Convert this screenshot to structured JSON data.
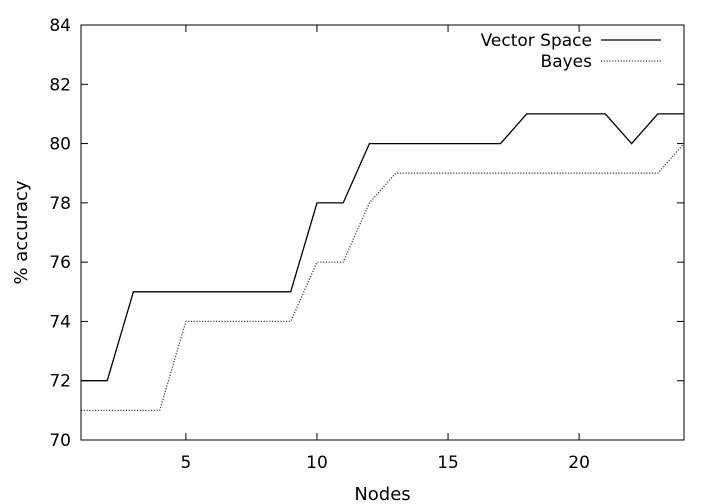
{
  "chart_data": {
    "type": "line",
    "title": "",
    "xlabel": "Nodes",
    "ylabel": "% accuracy",
    "xlim": [
      1,
      24
    ],
    "ylim": [
      70,
      84
    ],
    "xticks": [
      5,
      10,
      15,
      20
    ],
    "yticks": [
      70,
      72,
      74,
      76,
      78,
      80,
      82,
      84
    ],
    "grid": false,
    "legend_position": "top-right",
    "series": [
      {
        "name": "Vector Space",
        "style": "solid",
        "color": "#000000",
        "x": [
          1,
          2,
          3,
          4,
          5,
          6,
          7,
          8,
          9,
          10,
          11,
          12,
          13,
          14,
          15,
          16,
          17,
          18,
          19,
          20,
          21,
          22,
          23,
          24
        ],
        "values": [
          72,
          72,
          75,
          75,
          75,
          75,
          75,
          75,
          75,
          78,
          78,
          80,
          80,
          80,
          80,
          80,
          80,
          81,
          81,
          81,
          81,
          80,
          81,
          81
        ]
      },
      {
        "name": "Bayes",
        "style": "dotted",
        "color": "#444444",
        "x": [
          1,
          2,
          3,
          4,
          5,
          6,
          7,
          8,
          9,
          10,
          11,
          12,
          13,
          14,
          15,
          16,
          17,
          18,
          19,
          20,
          21,
          22,
          23,
          24
        ],
        "values": [
          71,
          71,
          71,
          71,
          74,
          74,
          74,
          74,
          74,
          76,
          76,
          78,
          79,
          79,
          79,
          79,
          79,
          79,
          79,
          79,
          79,
          79,
          79,
          80
        ]
      }
    ]
  }
}
